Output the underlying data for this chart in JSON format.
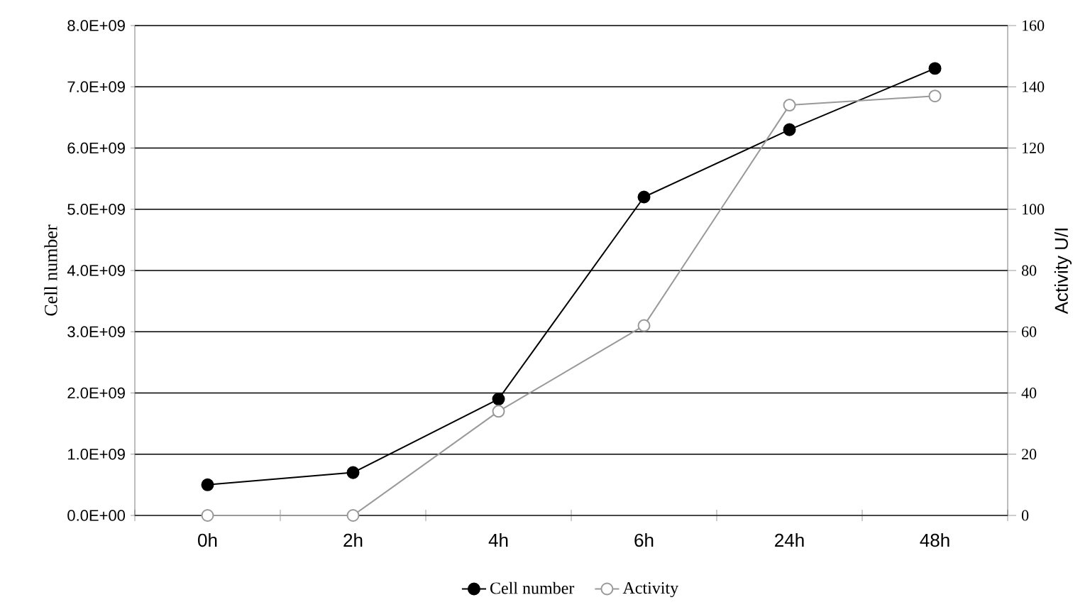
{
  "chart_data": {
    "type": "line",
    "categories": [
      "0h",
      "2h",
      "4h",
      "6h",
      "24h",
      "48h"
    ],
    "ylabel": "Cell number",
    "y2label": "Activity U/I",
    "ylim": [
      0,
      8000000000
    ],
    "yticks": [
      {
        "value": 0,
        "label": "0.0E+00"
      },
      {
        "value": 1000000000,
        "label": "1.0E+09"
      },
      {
        "value": 2000000000,
        "label": "2.0E+09"
      },
      {
        "value": 3000000000,
        "label": "3.0E+09"
      },
      {
        "value": 4000000000,
        "label": "4.0E+09"
      },
      {
        "value": 5000000000,
        "label": "5.0E+09"
      },
      {
        "value": 6000000000,
        "label": "6.0E+09"
      },
      {
        "value": 7000000000,
        "label": "7.0E+09"
      },
      {
        "value": 8000000000,
        "label": "8.0E+09"
      }
    ],
    "y2lim": [
      0,
      160
    ],
    "y2ticks": [
      0,
      20,
      40,
      60,
      80,
      100,
      120,
      140,
      160
    ],
    "grid": "y",
    "legend": "bottom",
    "marker": "circle",
    "line_style": "solid",
    "series": [
      {
        "name": "Cell number",
        "color": "#000000",
        "values": [
          500000000,
          700000000,
          1900000000,
          5200000000,
          6300000000,
          7300000000
        ]
      },
      {
        "name": "Activity",
        "color": "#999999",
        "axis": "y2",
        "values": [
          0,
          0,
          34,
          62,
          134,
          137
        ]
      }
    ]
  }
}
